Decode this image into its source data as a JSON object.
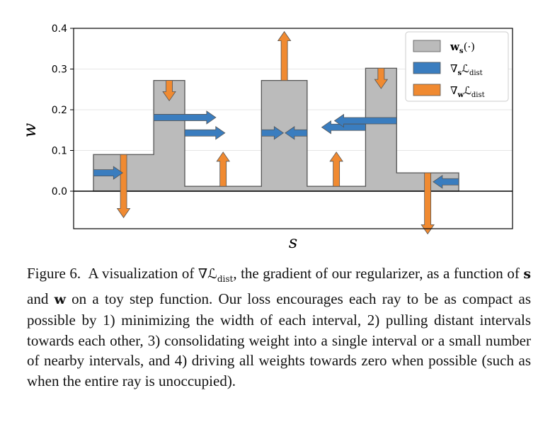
{
  "chart_data": {
    "type": "bar",
    "xlabel": "s",
    "ylabel": "w",
    "ylim": [
      -0.09,
      0.4
    ],
    "yticks": [
      "0.0",
      "0.1",
      "0.2",
      "0.3",
      "0.4"
    ],
    "grid": true,
    "legend_placement": "top-right",
    "legend": [
      {
        "name": "w_s(·)",
        "label": "w",
        "sub": "s",
        "suffix": "(·)",
        "color": "#bbbbbb"
      },
      {
        "name": "∇_s L_dist",
        "label": "∇",
        "sub": "s",
        "suffix": "ℒ",
        "suffix_sub": "dist",
        "color": "#3a7dbf"
      },
      {
        "name": "∇_w L_dist",
        "label": "∇",
        "sub": "w",
        "suffix": "ℒ",
        "suffix_sub": "dist",
        "color": "#f08a31"
      }
    ],
    "steps": [
      {
        "s0": 0.0,
        "s1": 0.165,
        "w": 0.09
      },
      {
        "s0": 0.165,
        "s1": 0.25,
        "w": 0.272
      },
      {
        "s0": 0.25,
        "s1": 0.46,
        "w": 0.012
      },
      {
        "s0": 0.46,
        "s1": 0.585,
        "w": 0.272
      },
      {
        "s0": 0.585,
        "s1": 0.745,
        "w": 0.012
      },
      {
        "s0": 0.745,
        "s1": 0.83,
        "w": 0.302
      },
      {
        "s0": 0.83,
        "s1": 1.0,
        "w": 0.045
      }
    ],
    "s_gradients": [
      {
        "s": 0.0,
        "w": 0.045,
        "ds": 0.08
      },
      {
        "s": 0.165,
        "w": 0.181,
        "ds": 0.17
      },
      {
        "s": 0.25,
        "w": 0.143,
        "ds": 0.11
      },
      {
        "s": 0.46,
        "w": 0.143,
        "ds": 0.06
      },
      {
        "s": 0.585,
        "w": 0.143,
        "ds": -0.06
      },
      {
        "s": 0.745,
        "w": 0.157,
        "ds": -0.12
      },
      {
        "s": 0.83,
        "w": 0.173,
        "ds": -0.17
      },
      {
        "s": 1.0,
        "w": 0.023,
        "ds": -0.07
      }
    ],
    "w_gradients": [
      {
        "s": 0.0825,
        "w": 0.09,
        "dw": -0.155
      },
      {
        "s": 0.2075,
        "w": 0.272,
        "dw": -0.05
      },
      {
        "s": 0.355,
        "w": 0.012,
        "dw": 0.084
      },
      {
        "s": 0.5225,
        "w": 0.272,
        "dw": 0.12
      },
      {
        "s": 0.665,
        "w": 0.012,
        "dw": 0.084
      },
      {
        "s": 0.7875,
        "w": 0.302,
        "dw": -0.05
      },
      {
        "s": 0.915,
        "w": 0.045,
        "dw": -0.15
      }
    ]
  },
  "caption": {
    "label": "Figure 6.",
    "part1": "A visualization of",
    "part2": ", the gradient of our regularizer, as a function of",
    "var_s": "s",
    "part3": "and",
    "var_w": "w",
    "part4": "on a toy step function. Our loss encourages each ray to be as compact as possible by 1) minimizing the width of each interval, 2) pulling distant intervals towards each other, 3) consolidating weight into a single interval or a small number of nearby intervals, and 4) driving all weights towards zero when possible (such as when the entire ray is unoccupied).",
    "math_symbol": "∇ℒ",
    "math_sub": "dist"
  },
  "colors": {
    "bar_fill": "#bbbbbb",
    "bar_edge": "#555555",
    "s_arrow": "#3a7dbf",
    "w_arrow": "#f08a31",
    "arrow_edge": "#555555"
  }
}
